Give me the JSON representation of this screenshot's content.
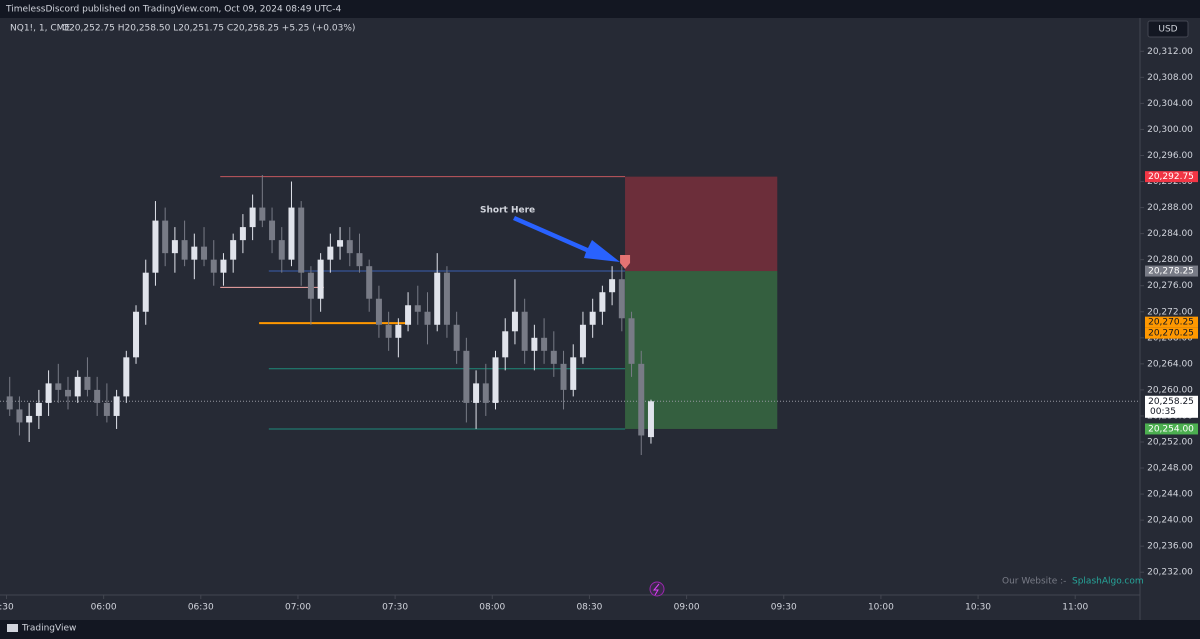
{
  "header": {
    "published": "TimelessDiscord published on TradingView.com, Oct 09, 2024 08:49 UTC-4"
  },
  "footer": {
    "logo": "TradingView"
  },
  "chart_data": {
    "type": "candlestick",
    "symbol": "NQ1!, 1, CME",
    "ohlc_text": "O20,252.75 H20,258.50 L20,251.75 C20,258.25 +5.25 (+0.03%)",
    "currency": "USD",
    "annotations": {
      "short": "Short  Here",
      "website_label": "Our Website :-",
      "website": "SplashAlgo.com"
    },
    "up_color": "#e0e3eb",
    "down_color": "#787b86",
    "x": [
      "05:31",
      "05:34",
      "05:37",
      "05:40",
      "05:43",
      "05:46",
      "05:49",
      "05:52",
      "05:55",
      "05:58",
      "06:01",
      "06:04",
      "06:07",
      "06:10",
      "06:13",
      "06:16",
      "06:19",
      "06:22",
      "06:25",
      "06:28",
      "06:31",
      "06:34",
      "06:37",
      "06:40",
      "06:43",
      "06:46",
      "06:49",
      "06:52",
      "06:55",
      "06:58",
      "07:01",
      "07:04",
      "07:07",
      "07:10",
      "07:13",
      "07:16",
      "07:19",
      "07:22",
      "07:25",
      "07:28",
      "07:31",
      "07:34",
      "07:37",
      "07:40",
      "07:43",
      "07:46",
      "07:49",
      "07:52",
      "07:55",
      "07:58",
      "08:01",
      "08:04",
      "08:07",
      "08:10",
      "08:13",
      "08:16",
      "08:19",
      "08:22",
      "08:25",
      "08:28",
      "08:31",
      "08:34",
      "08:37",
      "08:40",
      "08:43",
      "08:46",
      "08:49"
    ],
    "open": [
      20259,
      20257,
      20255,
      20256,
      20258,
      20261,
      20260,
      20259,
      20262,
      20260,
      20258,
      20256,
      20259,
      20265,
      20272,
      20278,
      20286,
      20281,
      20283,
      20280,
      20282,
      20280,
      20278,
      20280,
      20283,
      20285,
      20288,
      20286,
      20283,
      20280,
      20288,
      20278,
      20274,
      20280,
      20282,
      20283,
      20281,
      20279,
      20274,
      20270,
      20268,
      20270,
      20273,
      20272,
      20270,
      20278,
      20270,
      20266,
      20258,
      20261,
      20258,
      20265,
      20269,
      20272,
      20266,
      20268,
      20266,
      20264,
      20260,
      20265,
      20270,
      20272,
      20275,
      20277,
      20271,
      20264,
      20252.75
    ],
    "high": [
      20262,
      20259,
      20258,
      20260,
      20263,
      20264,
      20262,
      20263,
      20265,
      20262,
      20261,
      20260,
      20266,
      20273,
      20280,
      20289,
      20288,
      20285,
      20286,
      20284,
      20285,
      20283,
      20281,
      20284,
      20287,
      20290,
      20293,
      20288,
      20285,
      20292,
      20289,
      20279,
      20281,
      20284,
      20285,
      20285,
      20284,
      20280,
      20276,
      20272,
      20271,
      20275,
      20276,
      20275,
      20281,
      20279,
      20272,
      20268,
      20263,
      20264,
      20266,
      20271,
      20277,
      20274,
      20270,
      20271,
      20269,
      20266,
      20267,
      20272,
      20274,
      20276,
      20279,
      20279,
      20272,
      20266,
      20258.5
    ],
    "low": [
      20256,
      20253,
      20252,
      20254,
      20256,
      20258,
      20257,
      20258,
      20259,
      20256,
      20255,
      20254,
      20258,
      20264,
      20270,
      20276,
      20279,
      20278,
      20279,
      20277,
      20279,
      20276,
      20276,
      20278,
      20281,
      20283,
      20285,
      20281,
      20278,
      20279,
      20276,
      20270,
      20272,
      20278,
      20280,
      20279,
      20278,
      20272,
      20268,
      20266,
      20265,
      20269,
      20270,
      20267,
      20269,
      20268,
      20264,
      20255,
      20254,
      20256,
      20257,
      20263,
      20267,
      20264,
      20263,
      20264,
      20262,
      20257,
      20259,
      20264,
      20268,
      20270,
      20273,
      20269,
      20262,
      20250,
      20251.75
    ],
    "close": [
      20257,
      20255,
      20256,
      20258,
      20261,
      20260,
      20259,
      20262,
      20260,
      20258,
      20256,
      20259,
      20265,
      20272,
      20278,
      20286,
      20281,
      20283,
      20280,
      20282,
      20280,
      20278,
      20280,
      20283,
      20285,
      20288,
      20286,
      20283,
      20280,
      20288,
      20278,
      20274,
      20280,
      20282,
      20283,
      20281,
      20279,
      20274,
      20270,
      20268,
      20270,
      20273,
      20272,
      20270,
      20278,
      20270,
      20266,
      20258,
      20261,
      20258,
      20265,
      20269,
      20272,
      20266,
      20268,
      20266,
      20264,
      20260,
      20265,
      20270,
      20272,
      20275,
      20277,
      20271,
      20264,
      20253,
      20258.25
    ],
    "xlim": [
      "05:28",
      "11:20"
    ],
    "xticks": [
      {
        "value": "05:30",
        "label": ":30"
      },
      "06:00",
      "06:30",
      "07:00",
      "07:30",
      "08:00",
      "08:30",
      "09:00",
      "09:30",
      "10:00",
      "10:30",
      "11:00"
    ],
    "ylim": [
      20228.5,
      20316.5
    ],
    "yticks": [
      {
        "value": 20232,
        "label": "20,232.00"
      },
      {
        "value": 20236,
        "label": "20,236.00"
      },
      {
        "value": 20240,
        "label": "20,240.00"
      },
      {
        "value": 20244,
        "label": "20,244.00"
      },
      {
        "value": 20248,
        "label": "20,248.00"
      },
      {
        "value": 20252,
        "label": "20,252.00"
      },
      {
        "value": 20256,
        "label": "20,256.00"
      },
      {
        "value": 20260,
        "label": "20,260.00"
      },
      {
        "value": 20264,
        "label": "20,264.00"
      },
      {
        "value": 20268,
        "label": "20,268.00"
      },
      {
        "value": 20272,
        "label": "20,272.00"
      },
      {
        "value": 20276,
        "label": "20,276.00"
      },
      {
        "value": 20280,
        "label": "20,280.00"
      },
      {
        "value": 20284,
        "label": "20,284.00"
      },
      {
        "value": 20288,
        "label": "20,288.00"
      },
      {
        "value": 20292,
        "label": "20,292.00"
      },
      {
        "value": 20296,
        "label": "20,296.00"
      },
      {
        "value": 20300,
        "label": "20,300.00"
      },
      {
        "value": 20304,
        "label": "20,304.00"
      },
      {
        "value": 20308,
        "label": "20,308.00"
      },
      {
        "value": 20312,
        "label": "20,312.00"
      }
    ],
    "levels": [
      {
        "price": 20292.75,
        "start": "06:36",
        "end": "08:41",
        "color": "#c2575e"
      },
      {
        "price": 20278.25,
        "start": "06:51",
        "end": "08:41",
        "color": "#3a5fb0"
      },
      {
        "price": 20275.75,
        "start": "06:36",
        "end": "07:08",
        "color": "#f4a7a7"
      },
      {
        "price": 20270.25,
        "start": "06:48",
        "end": "07:34",
        "color": "#ff9800"
      },
      {
        "price": 20263.25,
        "start": "06:51",
        "end": "08:41",
        "color": "#1e8a7a"
      },
      {
        "price": 20254,
        "start": "06:51",
        "end": "08:41",
        "color": "#1e8a7a"
      }
    ],
    "position": {
      "entry": 20278.25,
      "stop": 20292.75,
      "target": 20254,
      "start": "08:41",
      "end": "09:28"
    },
    "last_price": 20258.25,
    "price_badges": [
      {
        "value": 20292.75,
        "label": "20,292.75",
        "color": "#f23645"
      },
      {
        "value": 20278.25,
        "label": "20,278.25",
        "color": "#787b86"
      },
      {
        "value": 20270.25,
        "label": "20,270.25",
        "color": "#ff9800"
      },
      {
        "value": 20270.25,
        "label": "20,270.25",
        "color": "#ff9800"
      },
      {
        "value": 20258.25,
        "label": "20,258.25",
        "color": "#ffffff",
        "countdown": "00:35"
      },
      {
        "value": 20254,
        "label": "20,254.00",
        "color": "#4caf50"
      }
    ]
  }
}
